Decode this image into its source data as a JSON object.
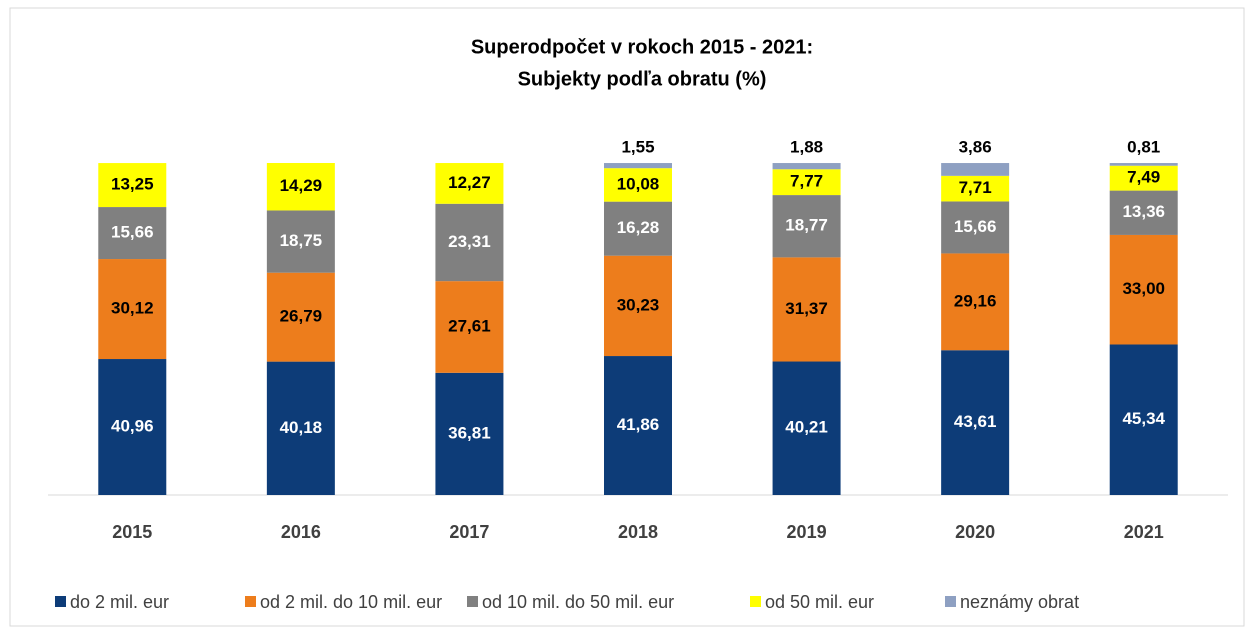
{
  "chart_data": {
    "type": "stacked_bar",
    "title": [
      "Superodpočet v rokoch 2015 - 2021:",
      "Subjekty podľa obratu (%)"
    ],
    "categories": [
      "2015",
      "2016",
      "2017",
      "2018",
      "2019",
      "2020",
      "2021"
    ],
    "series": [
      {
        "name": "do 2 mil. eur",
        "color": "#0d3c78",
        "values": [
          40.96,
          40.18,
          36.81,
          41.86,
          40.21,
          43.61,
          45.34
        ],
        "value_labels": [
          "40,96",
          "40,18",
          "36,81",
          "41,86",
          "40,21",
          "43,61",
          "45,34"
        ]
      },
      {
        "name": "od 2 mil. do 10 mil. eur",
        "color": "#ed7d1c",
        "values": [
          30.12,
          26.79,
          27.61,
          30.23,
          31.37,
          29.16,
          33.0
        ],
        "value_labels": [
          "30,12",
          "26,79",
          "27,61",
          "30,23",
          "31,37",
          "29,16",
          "33,00"
        ]
      },
      {
        "name": "od 10 mil. do 50 mil. eur",
        "color": "#808080",
        "values": [
          15.66,
          18.75,
          23.31,
          16.28,
          18.77,
          15.66,
          13.36
        ],
        "value_labels": [
          "15,66",
          "18,75",
          "23,31",
          "16,28",
          "18,77",
          "15,66",
          "13,36"
        ]
      },
      {
        "name": "od 50 mil. eur",
        "color": "#ffff00",
        "values": [
          13.25,
          14.29,
          12.27,
          10.08,
          7.77,
          7.71,
          7.49
        ],
        "value_labels": [
          "13,25",
          "14,29",
          "12,27",
          "10,08",
          "7,77",
          "7,71",
          "7,49"
        ]
      },
      {
        "name": "neznámy obrat",
        "color": "#8ea0c2",
        "values": [
          null,
          null,
          null,
          1.55,
          1.88,
          3.86,
          0.81
        ],
        "value_labels": [
          null,
          null,
          null,
          "1,55",
          "1,88",
          "3,86",
          "0,81"
        ]
      }
    ]
  }
}
